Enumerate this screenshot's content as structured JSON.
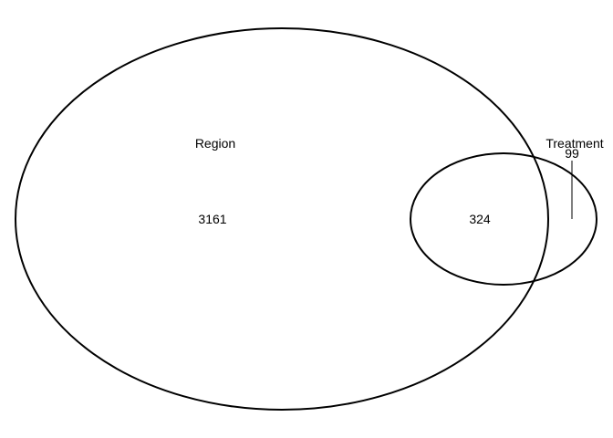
{
  "diagram": {
    "type": "venn",
    "sets": [
      {
        "name": "Region",
        "only_count": "3161"
      },
      {
        "name": "Treatment",
        "only_count": "99"
      }
    ],
    "intersection_count": "324",
    "colors": {
      "stroke": "#000000",
      "background": "#ffffff"
    }
  }
}
